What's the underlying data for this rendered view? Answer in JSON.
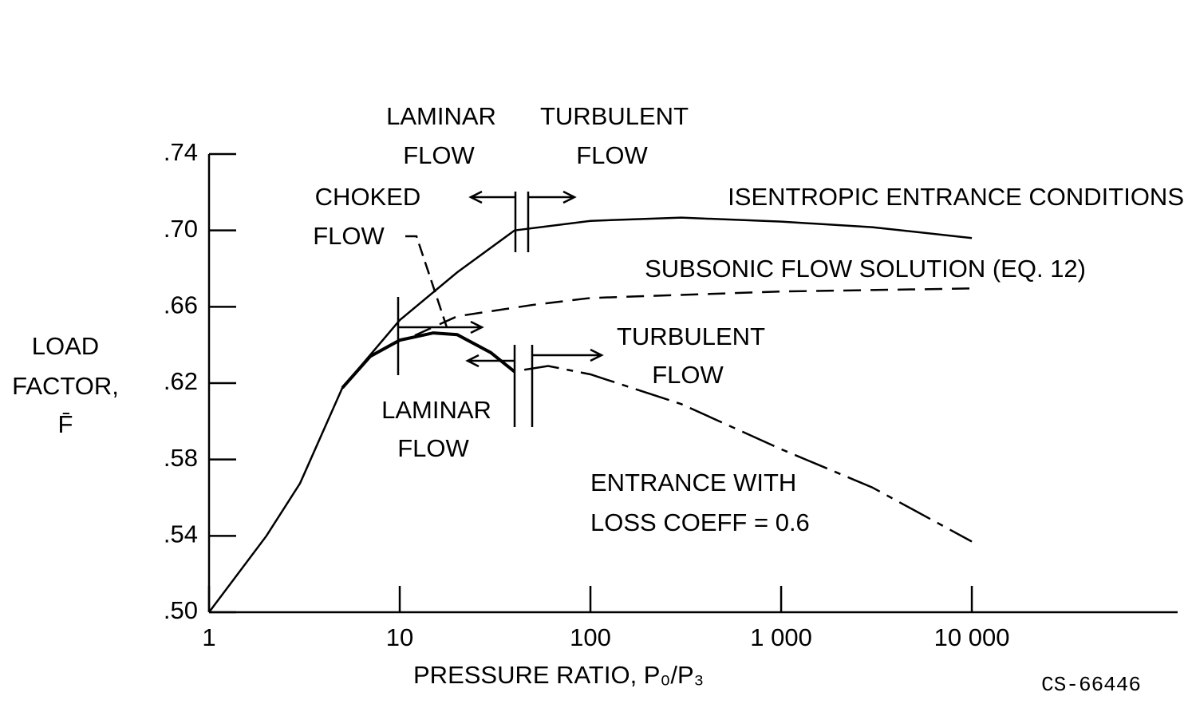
{
  "chart_data": {
    "type": "line",
    "xlabel": "PRESSURE RATIO, P₀/P₃",
    "ylabel": [
      "LOAD",
      "FACTOR,",
      "F̄"
    ],
    "xscale": "log",
    "xlim": [
      1,
      120000
    ],
    "ylim": [
      0.5,
      0.74
    ],
    "xticks": [
      1,
      10,
      100,
      {
        "value": 1000,
        "label": "1 000"
      },
      {
        "value": 10000,
        "label": "10 000"
      }
    ],
    "yticks": [
      {
        "value": 0.5,
        "label": ".50"
      },
      {
        "value": 0.54,
        "label": ".54"
      },
      {
        "value": 0.58,
        "label": ".58"
      },
      {
        "value": 0.62,
        "label": ".62"
      },
      {
        "value": 0.66,
        "label": ".66"
      },
      {
        "value": 0.7,
        "label": ".70"
      },
      {
        "value": 0.74,
        "label": ".74"
      }
    ],
    "series": [
      {
        "color": "#000000",
        "dash": [
          "solid"
        ],
        "x": [
          1,
          2,
          3,
          5,
          10,
          20,
          40,
          100,
          300,
          1000,
          3000,
          10000
        ],
        "values": [
          0.5,
          0.54,
          0.5675,
          0.6175,
          0.653,
          0.678,
          0.7,
          0.705,
          0.7067,
          0.7046,
          0.7017,
          0.696
        ]
      },
      {
        "color": "#000000",
        "dash": [
          "dashed"
        ],
        "x": [
          12,
          20,
          50,
          100,
          1000,
          10000
        ],
        "values": [
          0.645,
          0.655,
          0.661,
          0.6646,
          0.668,
          0.6696
        ]
      },
      {
        "color": "#000000",
        "dash": [
          "solid",
          "dashdot"
        ],
        "x": [
          5,
          7,
          10,
          15,
          20,
          30,
          40,
          42,
          45,
          60,
          100,
          300,
          1000,
          3000,
          10000
        ],
        "values": [
          0.6175,
          0.634,
          0.6425,
          0.6463,
          0.6454,
          0.636,
          0.626,
          null,
          0.627,
          0.629,
          0.6246,
          0.609,
          0.5854,
          0.5654,
          0.537
        ]
      }
    ],
    "annotations": [
      "LAMINAR",
      "FLOW",
      "TURBULENT",
      "FLOW",
      "CHOKED",
      "FLOW",
      "ISENTROPIC ENTRANCE CONDITIONS",
      "SUBSONIC FLOW SOLUTION (EQ. 12)",
      "TURBULENT",
      "FLOW",
      "LAMINAR",
      "FLOW",
      "ENTRANCE WITH",
      "LOSS COEFF = 0.6",
      "CS-66446"
    ]
  }
}
